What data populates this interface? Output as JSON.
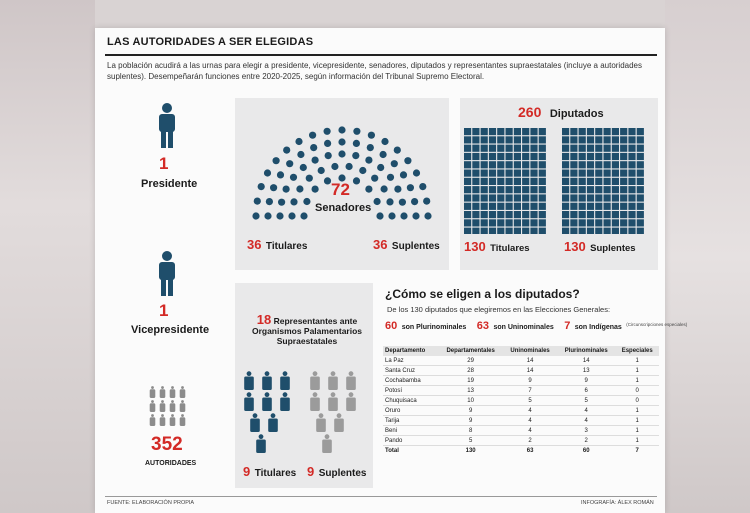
{
  "header": {
    "title": "LAS AUTORIDADES A SER ELEGIDAS",
    "intro": "La población acudirá a las urnas para elegir a presidente, vicepresidente, senadores, diputados y representantes supraestatales (incluye a autoridades suplentes). Desempeñarán funciones entre 2020-2025, según información del Tribunal Supremo Electoral."
  },
  "left": {
    "presidente": {
      "count": "1",
      "label": "Presidente"
    },
    "vicepresidente": {
      "count": "1",
      "label": "Vicepresidente"
    },
    "total": {
      "count": "352",
      "label": "AUTORIDADES"
    }
  },
  "senadores": {
    "total": "72",
    "label": "Senadores",
    "titulares_n": "36",
    "titulares": "Titulares",
    "suplentes_n": "36",
    "suplentes": "Suplentes"
  },
  "diputados": {
    "total": "260",
    "label": "Diputados",
    "titulares_n": "130",
    "titulares": "Titulares",
    "suplentes_n": "130",
    "suplentes": "Suplentes"
  },
  "supraestatales": {
    "count": "18",
    "label": "Representantes ante Organismos Palamentarios Supraestatales",
    "titulares_n": "9",
    "titulares": "Titulares",
    "suplentes_n": "9",
    "suplentes": "Suplentes"
  },
  "eleccion": {
    "title": "¿Cómo se eligen a los diputados?",
    "subtitle": "De los 130 diputados que elegiremos en las Elecciones Generales:",
    "pluri_n": "60",
    "pluri": "son Plurinominales",
    "uni_n": "63",
    "uni": "son Uninominales",
    "ind_n": "7",
    "ind": "son Indígenas",
    "ind_note": "(Circunscripciones especiales)"
  },
  "table": {
    "headers": [
      "Departamento",
      "Departamentales",
      "Uninominales",
      "Plurinominales",
      "Especiales"
    ],
    "rows": [
      [
        "La Paz",
        "29",
        "14",
        "14",
        "1"
      ],
      [
        "Santa Cruz",
        "28",
        "14",
        "13",
        "1"
      ],
      [
        "Cochabamba",
        "19",
        "9",
        "9",
        "1"
      ],
      [
        "Potosí",
        "13",
        "7",
        "6",
        "0"
      ],
      [
        "Chuquisaca",
        "10",
        "5",
        "5",
        "0"
      ],
      [
        "Oruro",
        "9",
        "4",
        "4",
        "1"
      ],
      [
        "Tarija",
        "9",
        "4",
        "4",
        "1"
      ],
      [
        "Beni",
        "8",
        "4",
        "3",
        "1"
      ],
      [
        "Pando",
        "5",
        "2",
        "2",
        "1"
      ]
    ],
    "total": [
      "Total",
      "130",
      "63",
      "60",
      "7"
    ]
  },
  "footer": {
    "source": "FUENTE: ELABORACIÓN PROPIA",
    "credit": "INFOGRAFÍA: ÁLEX ROMÁN"
  },
  "colors": {
    "navy": "#1f4e6b",
    "red": "#d32a26",
    "gray": "#9b9b9b"
  }
}
